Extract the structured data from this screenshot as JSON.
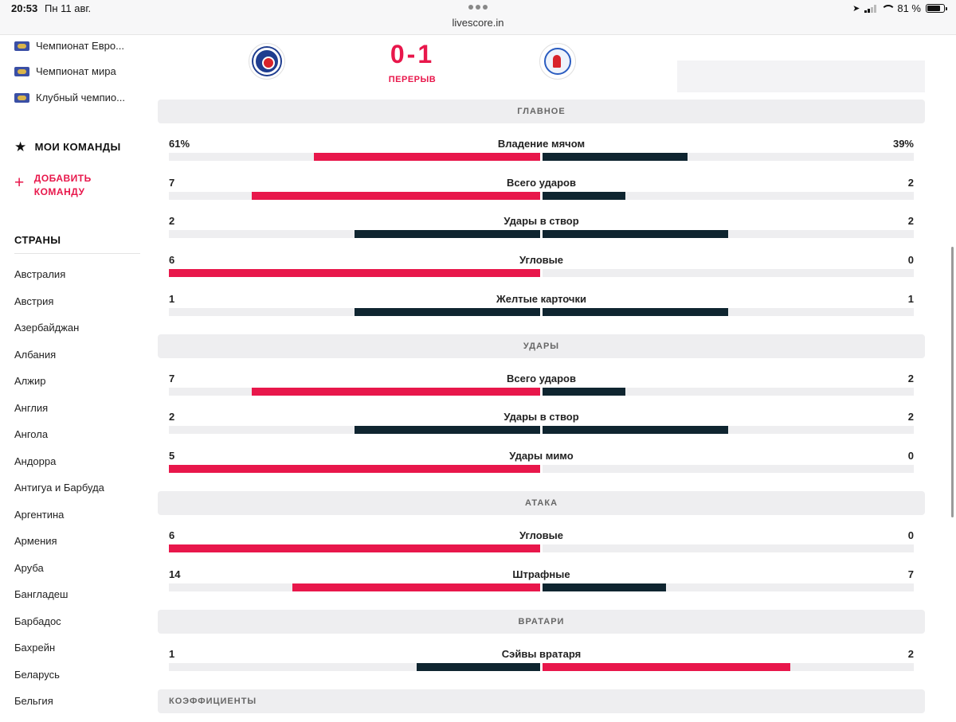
{
  "statusbar": {
    "time": "20:53",
    "date": "Пн 11 авг.",
    "url": "livescore.in",
    "battery": "81 %",
    "battery_level": 0.81
  },
  "sidebar": {
    "competitions": [
      {
        "label": "Чемпионат Евро..."
      },
      {
        "label": "Чемпионат мира"
      },
      {
        "label": "Клубный чемпио..."
      }
    ],
    "my_teams": "МОИ КОМАНДЫ",
    "add_team_line1": "ДОБАВИТЬ",
    "add_team_line2": "КОМАНДУ",
    "countries_title": "СТРАНЫ",
    "countries": [
      "Австралия",
      "Австрия",
      "Азербайджан",
      "Албания",
      "Алжир",
      "Англия",
      "Ангола",
      "Андорра",
      "Антигуа и Барбуда",
      "Аргентина",
      "Армения",
      "Аруба",
      "Бангладеш",
      "Барбадос",
      "Бахрейн",
      "Беларусь",
      "Бельгия"
    ]
  },
  "match": {
    "score": "0-1",
    "status": "ПЕРЕРЫВ"
  },
  "colors": {
    "leader": "#e8174b",
    "trailer": "#0f2530",
    "track": "#eeeef0"
  },
  "sections": [
    {
      "title": "ГЛАВНОЕ",
      "stats": [
        {
          "label": "Владение мячом",
          "home": "61%",
          "away": "39%",
          "home_share": 0.61,
          "away_share": 0.39
        },
        {
          "label": "Всего ударов",
          "home": "7",
          "away": "2",
          "home_share": 0.7778,
          "away_share": 0.2222
        },
        {
          "label": "Удары в створ",
          "home": "2",
          "away": "2",
          "home_share": 0.5,
          "away_share": 0.5
        },
        {
          "label": "Угловые",
          "home": "6",
          "away": "0",
          "home_share": 1.0,
          "away_share": 0.0
        },
        {
          "label": "Желтые карточки",
          "home": "1",
          "away": "1",
          "home_share": 0.5,
          "away_share": 0.5
        }
      ]
    },
    {
      "title": "УДАРЫ",
      "stats": [
        {
          "label": "Всего ударов",
          "home": "7",
          "away": "2",
          "home_share": 0.7778,
          "away_share": 0.2222
        },
        {
          "label": "Удары в створ",
          "home": "2",
          "away": "2",
          "home_share": 0.5,
          "away_share": 0.5
        },
        {
          "label": "Удары мимо",
          "home": "5",
          "away": "0",
          "home_share": 1.0,
          "away_share": 0.0
        }
      ]
    },
    {
      "title": "АТАКА",
      "stats": [
        {
          "label": "Угловые",
          "home": "6",
          "away": "0",
          "home_share": 1.0,
          "away_share": 0.0
        },
        {
          "label": "Штрафные",
          "home": "14",
          "away": "7",
          "home_share": 0.6667,
          "away_share": 0.3333
        }
      ]
    },
    {
      "title": "ВРАТАРИ",
      "stats": [
        {
          "label": "Сэйвы вратаря",
          "home": "1",
          "away": "2",
          "home_share": 0.3333,
          "away_share": 0.6667
        }
      ]
    }
  ],
  "odds_title": "КОЭФФИЦИЕНТЫ"
}
